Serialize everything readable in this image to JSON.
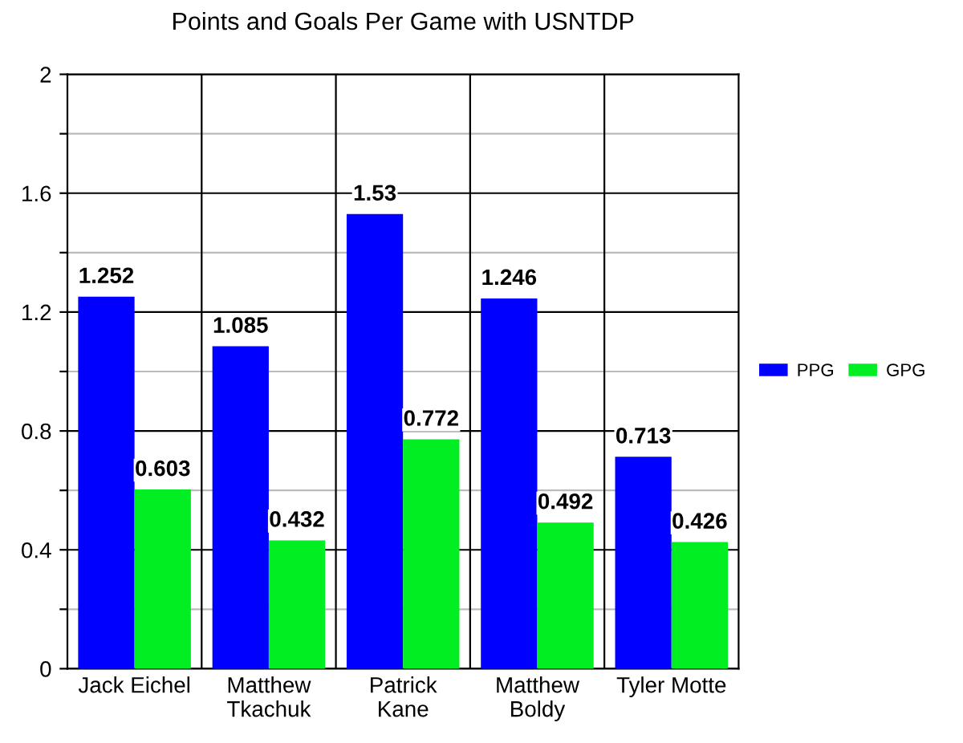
{
  "chart_data": {
    "type": "bar",
    "title": "Points and Goals Per Game with USNTDP",
    "categories": [
      "Jack Eichel",
      "Matthew\nTkachuk",
      "Patrick\nKane",
      "Matthew\nBoldy",
      "Tyler Motte"
    ],
    "series": [
      {
        "name": "PPG",
        "color": "#0000ff",
        "values": [
          1.252,
          1.085,
          1.53,
          1.246,
          0.713
        ]
      },
      {
        "name": "GPG",
        "color": "#00ee22",
        "values": [
          0.603,
          0.432,
          0.772,
          0.492,
          0.426
        ]
      }
    ],
    "ylim": [
      0,
      2
    ],
    "yticks": [
      0,
      {
        "value": 0.2,
        "label": null
      },
      0.4,
      {
        "value": 0.6,
        "label": null
      },
      0.8,
      {
        "value": 1.0,
        "label": null
      },
      1.2,
      {
        "value": 1.4,
        "label": null
      },
      1.6,
      {
        "value": 1.8,
        "label": null
      },
      2
    ],
    "grid": true,
    "legend": "right",
    "data_labels": true
  }
}
